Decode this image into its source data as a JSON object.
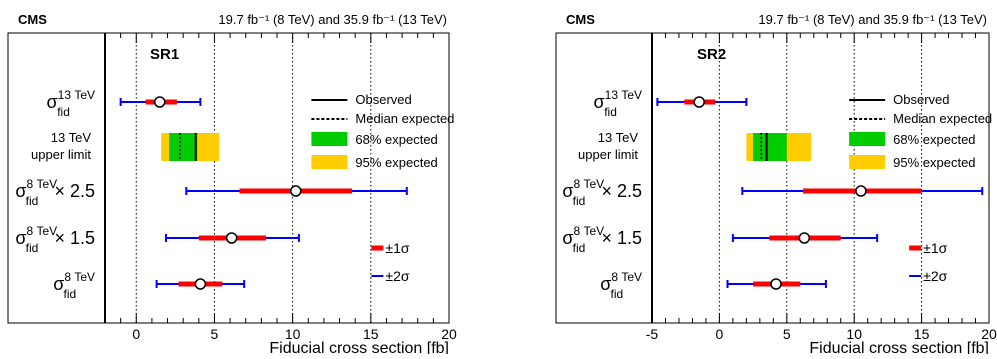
{
  "chart_data": [
    {
      "type": "scatter",
      "experiment": "CMS",
      "lumi_label": "19.7 fb⁻¹ (8 TeV) and 35.9 fb⁻¹ (13 TeV)",
      "region": "SR1",
      "xlabel": "Fiducial cross section [fb]",
      "xlim": [
        -2,
        20
      ],
      "xticks": [
        0,
        5,
        10,
        15,
        20
      ],
      "dashed_vlines": [
        0,
        5,
        10,
        15
      ],
      "rows": [
        {
          "key": "sigma13",
          "base": "σ",
          "sup": "13 TeV",
          "sub": "fid",
          "suffix": "",
          "central": 1.5,
          "sigma1": [
            0.6,
            2.6
          ],
          "sigma2": [
            -1.0,
            4.1
          ]
        },
        {
          "key": "limit13",
          "line1": "13 TeV",
          "line2": "upper limit",
          "observed": 3.8,
          "median_expected": 2.8,
          "band68": [
            2.1,
            3.9
          ],
          "band95": [
            1.6,
            5.3
          ]
        },
        {
          "key": "sigma8x25",
          "base": "σ",
          "sup": "8 TeV",
          "sub": "fid",
          "suffix": "× 2.5",
          "central": 10.2,
          "sigma1": [
            6.6,
            13.8
          ],
          "sigma2": [
            3.2,
            17.3
          ]
        },
        {
          "key": "sigma8x15",
          "base": "σ",
          "sup": "8 TeV",
          "sub": "fid",
          "suffix": "× 1.5",
          "central": 6.1,
          "sigma1": [
            4.0,
            8.3
          ],
          "sigma2": [
            1.9,
            10.4
          ]
        },
        {
          "key": "sigma8",
          "base": "σ",
          "sup": "8 TeV",
          "sub": "fid",
          "suffix": "",
          "central": 4.1,
          "sigma1": [
            2.7,
            5.5
          ],
          "sigma2": [
            1.3,
            6.9
          ]
        }
      ]
    },
    {
      "type": "scatter",
      "experiment": "CMS",
      "lumi_label": "19.7 fb⁻¹ (8 TeV) and 35.9 fb⁻¹ (13 TeV)",
      "region": "SR2",
      "xlabel": "Fiducial cross section [fb]",
      "xlim": [
        -5,
        20
      ],
      "xticks": [
        -5,
        0,
        5,
        10,
        15,
        20
      ],
      "dashed_vlines": [
        0,
        5,
        10,
        15
      ],
      "rows": [
        {
          "key": "sigma13",
          "base": "σ",
          "sup": "13 TeV",
          "sub": "fid",
          "suffix": "",
          "central": -1.5,
          "sigma1": [
            -2.6,
            -0.3
          ],
          "sigma2": [
            -4.6,
            2.0
          ]
        },
        {
          "key": "limit13",
          "line1": "13 TeV",
          "line2": "upper limit",
          "observed": 3.5,
          "median_expected": 3.1,
          "band68": [
            2.5,
            5.0
          ],
          "band95": [
            2.0,
            6.8
          ]
        },
        {
          "key": "sigma8x25",
          "base": "σ",
          "sup": "8 TeV",
          "sub": "fid",
          "suffix": "× 2.5",
          "central": 10.5,
          "sigma1": [
            6.2,
            15.0
          ],
          "sigma2": [
            1.7,
            19.5
          ]
        },
        {
          "key": "sigma8x15",
          "base": "σ",
          "sup": "8 TeV",
          "sub": "fid",
          "suffix": "× 1.5",
          "central": 6.3,
          "sigma1": [
            3.7,
            9.0
          ],
          "sigma2": [
            1.0,
            11.7
          ]
        },
        {
          "key": "sigma8",
          "base": "σ",
          "sup": "8 TeV",
          "sub": "fid",
          "suffix": "",
          "central": 4.2,
          "sigma1": [
            2.5,
            6.0
          ],
          "sigma2": [
            0.6,
            7.9
          ]
        }
      ]
    }
  ],
  "legend": {
    "observed": "Observed",
    "median": "Median expected",
    "band68": "68% expected",
    "band95": "95% expected",
    "sigma1": "±1σ",
    "sigma2": "±2σ"
  },
  "colors": {
    "sigma1": "#ff0000",
    "sigma2": "#0000ff",
    "band68": "#00cc00",
    "band95": "#ffcc00"
  }
}
